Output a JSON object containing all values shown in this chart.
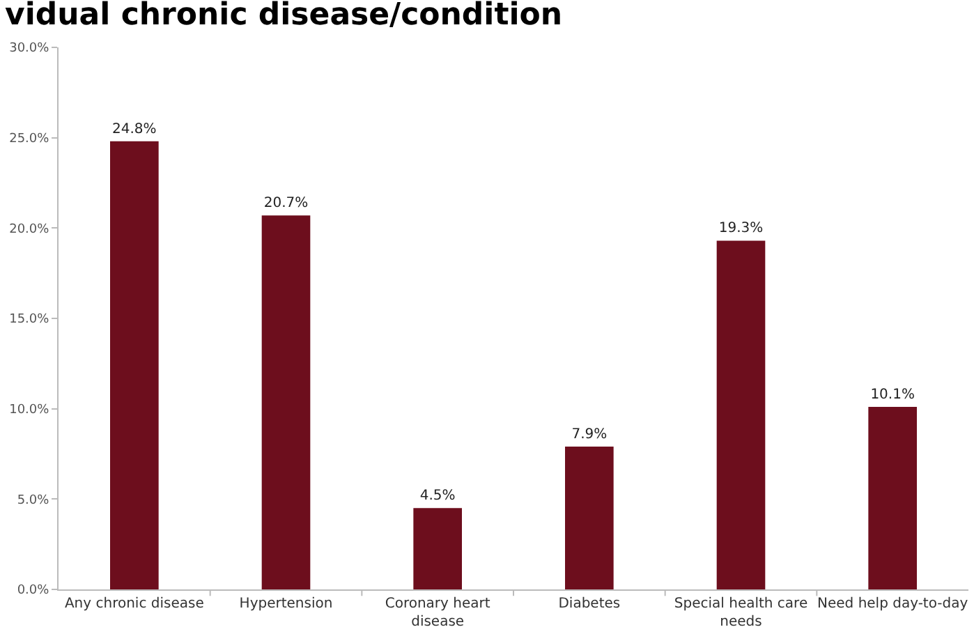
{
  "chart_data": {
    "type": "bar",
    "title": "vidual chronic disease/condition",
    "categories": [
      "Any chronic disease",
      "Hypertension",
      "Coronary heart disease",
      "Diabetes",
      "Special health care needs",
      "Need help day-to-day"
    ],
    "values": [
      24.8,
      20.7,
      4.5,
      7.9,
      19.3,
      10.1
    ],
    "value_labels": [
      "24.8%",
      "20.7%",
      "4.5%",
      "7.9%",
      "19.3%",
      "10.1%"
    ],
    "color": "#6d0e1d",
    "ylim": [
      0,
      30
    ],
    "yticks": [
      {
        "value": 0,
        "label": "0.0%"
      },
      {
        "value": 5,
        "label": "5.0%"
      },
      {
        "value": 10,
        "label": "10.0%"
      },
      {
        "value": 15,
        "label": "15.0%"
      },
      {
        "value": 20,
        "label": "20.0%"
      },
      {
        "value": 25,
        "label": "25.0%"
      },
      {
        "value": 30,
        "label": "30.0%"
      }
    ],
    "grid": false
  }
}
